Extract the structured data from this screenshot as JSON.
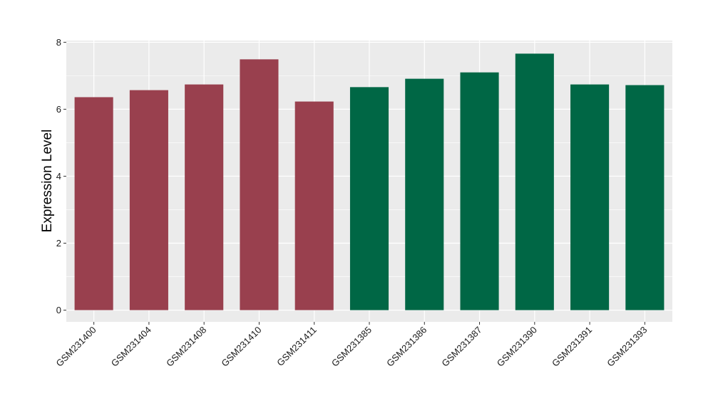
{
  "chart_data": {
    "type": "bar",
    "title": "",
    "xlabel": "",
    "ylabel": "Expression Level",
    "ylim": [
      -0.35,
      8.05
    ],
    "yticks": [
      0,
      2,
      4,
      6,
      8
    ],
    "grid": true,
    "categories": [
      "GSM231400",
      "GSM231404",
      "GSM231408",
      "GSM231410",
      "GSM231411",
      "GSM231385",
      "GSM231386",
      "GSM231387",
      "GSM231390",
      "GSM231391",
      "GSM231393"
    ],
    "values": [
      6.36,
      6.57,
      6.74,
      7.49,
      6.23,
      6.66,
      6.91,
      7.1,
      7.66,
      6.74,
      6.72
    ],
    "bar_colors": [
      "#99404e",
      "#99404e",
      "#99404e",
      "#99404e",
      "#99404e",
      "#006745",
      "#006745",
      "#006745",
      "#006745",
      "#006745",
      "#006745"
    ],
    "colors": {
      "panel_background": "#ebebeb",
      "grid": "#ffffff",
      "group_a": "#99404e",
      "group_b": "#006745"
    }
  }
}
